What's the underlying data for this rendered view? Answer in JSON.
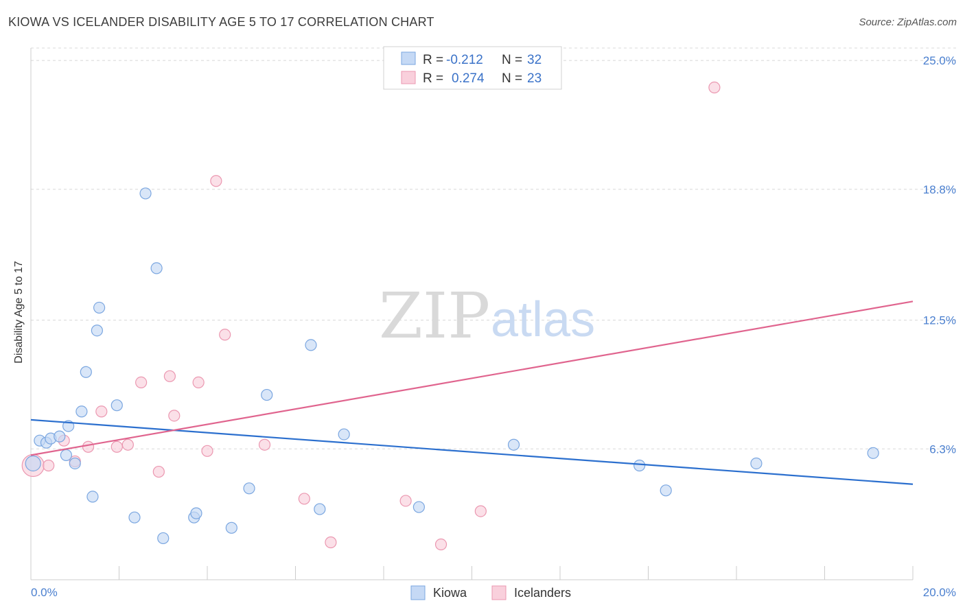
{
  "title": "KIOWA VS ICELANDER DISABILITY AGE 5 TO 17 CORRELATION CHART",
  "source": "Source: ZipAtlas.com",
  "watermark": {
    "zip": "ZIP",
    "atlas": "atlas"
  },
  "legend_top": [
    {
      "r_label": "R =",
      "r_value": "-0.212",
      "n_label": "N =",
      "n_value": "32"
    },
    {
      "r_label": "R =",
      "r_value": "0.274",
      "n_label": "N =",
      "n_value": "23"
    }
  ],
  "colors": {
    "kiowa_fill": "#c5d9f5",
    "kiowa_stroke": "#7aa6e0",
    "kiowa_line": "#2b6fce",
    "ice_fill": "#f9d0dc",
    "ice_stroke": "#eb97b0",
    "ice_line": "#e0648e",
    "grid": "#d8d8d8",
    "axis_text": "#4a7fcf"
  },
  "chart_data": {
    "type": "scatter",
    "title": "KIOWA VS ICELANDER DISABILITY AGE 5 TO 17 CORRELATION CHART",
    "xlabel": "",
    "ylabel": "Disability Age 5 to 17",
    "xlim": [
      0,
      20
    ],
    "ylim": [
      0,
      25.6
    ],
    "x_tick_labels": [
      "0.0%",
      "20.0%"
    ],
    "y_ticks": [
      6.3,
      12.5,
      18.8,
      25.0
    ],
    "y_tick_labels": [
      "6.3%",
      "12.5%",
      "18.8%",
      "25.0%"
    ],
    "grid": "horizontal dashed",
    "legend_position": "top-center",
    "series": [
      {
        "name": "Kiowa",
        "x": [
          0.05,
          0.2,
          0.35,
          0.45,
          0.65,
          0.8,
          0.85,
          1.0,
          1.15,
          1.25,
          1.4,
          1.5,
          1.55,
          1.95,
          2.35,
          2.6,
          2.85,
          3.0,
          3.7,
          3.75,
          4.55,
          4.95,
          5.35,
          6.35,
          6.55,
          7.1,
          8.8,
          10.95,
          13.8,
          14.4,
          16.45,
          19.1
        ],
        "y": [
          5.6,
          6.7,
          6.6,
          6.8,
          6.9,
          6.0,
          7.4,
          5.6,
          8.1,
          10.0,
          4.0,
          12.0,
          13.1,
          8.4,
          3.0,
          18.6,
          15.0,
          2.0,
          3.0,
          3.2,
          2.5,
          4.4,
          8.9,
          11.3,
          3.4,
          7.0,
          3.5,
          6.5,
          5.5,
          4.3,
          5.6,
          6.1
        ]
      },
      {
        "name": "Icelanders",
        "x": [
          0.05,
          0.4,
          0.75,
          1.0,
          1.3,
          1.6,
          1.95,
          2.2,
          2.5,
          2.9,
          3.15,
          3.25,
          3.8,
          4.0,
          4.2,
          4.4,
          5.3,
          6.2,
          6.8,
          8.5,
          9.3,
          10.2,
          15.5
        ],
        "y": [
          5.5,
          5.5,
          6.7,
          5.7,
          6.4,
          8.1,
          6.4,
          6.5,
          9.5,
          5.2,
          9.8,
          7.9,
          9.5,
          6.2,
          19.2,
          11.8,
          6.5,
          3.9,
          1.8,
          3.8,
          1.7,
          3.3,
          23.7
        ]
      }
    ],
    "trend_lines": [
      {
        "series": "Kiowa",
        "x": [
          0,
          20
        ],
        "y": [
          7.7,
          4.6
        ]
      },
      {
        "series": "Icelanders",
        "x": [
          0,
          20
        ],
        "y": [
          6.0,
          13.4
        ]
      }
    ],
    "legend": [
      "Kiowa",
      "Icelanders"
    ]
  }
}
